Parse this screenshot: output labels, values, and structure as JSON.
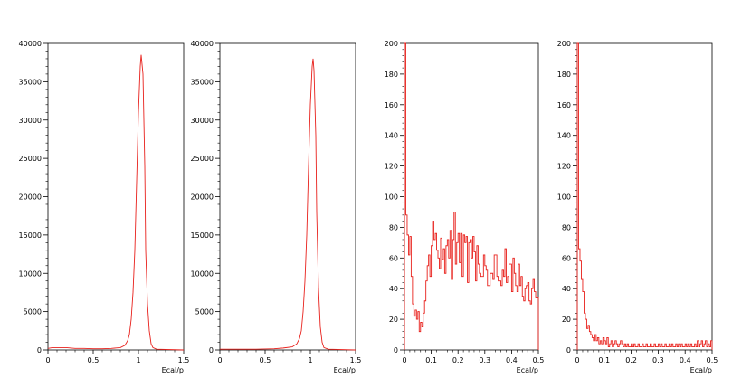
{
  "colors": {
    "histogram": "#e8201b",
    "frame": "#000000",
    "background": "#ffffff"
  },
  "chart_data": [
    {
      "type": "histogram",
      "xlabel": "Ecal/p",
      "ylabel": "",
      "xlim": [
        0,
        1.5
      ],
      "ylim": [
        0,
        40000
      ],
      "xticks": [
        "0",
        "0.5",
        "1",
        "1.5"
      ],
      "xtick_values": [
        0,
        0.5,
        1,
        1.5
      ],
      "yticks": [
        "0",
        "5000",
        "10000",
        "15000",
        "20000",
        "25000",
        "30000",
        "35000",
        "40000"
      ],
      "ytick_values": [
        0,
        5000,
        10000,
        15000,
        20000,
        25000,
        30000,
        35000,
        40000
      ],
      "x": [
        0,
        0.05,
        0.1,
        0.2,
        0.3,
        0.4,
        0.5,
        0.6,
        0.7,
        0.8,
        0.85,
        0.88,
        0.9,
        0.92,
        0.94,
        0.96,
        0.98,
        1.0,
        1.02,
        1.03,
        1.05,
        1.07,
        1.08,
        1.1,
        1.12,
        1.14,
        1.16,
        1.2,
        1.5
      ],
      "y": [
        200,
        300,
        300,
        300,
        200,
        200,
        150,
        150,
        200,
        300,
        600,
        1200,
        2000,
        4000,
        7500,
        13000,
        22000,
        31000,
        37000,
        38500,
        36000,
        24000,
        13000,
        6000,
        2500,
        800,
        300,
        100,
        0
      ]
    },
    {
      "type": "histogram",
      "xlabel": "Ecal/p",
      "ylabel": "",
      "xlim": [
        0,
        1.5
      ],
      "ylim": [
        0,
        40000
      ],
      "xticks": [
        "0",
        "0.5",
        "1",
        "1.5"
      ],
      "xtick_values": [
        0,
        0.5,
        1,
        1.5
      ],
      "yticks": [
        "0",
        "5000",
        "10000",
        "15000",
        "20000",
        "25000",
        "30000",
        "35000",
        "40000"
      ],
      "ytick_values": [
        0,
        5000,
        10000,
        15000,
        20000,
        25000,
        30000,
        35000,
        40000
      ],
      "x": [
        0,
        0.2,
        0.4,
        0.6,
        0.7,
        0.8,
        0.85,
        0.88,
        0.9,
        0.92,
        0.94,
        0.96,
        0.98,
        1.0,
        1.02,
        1.03,
        1.04,
        1.06,
        1.07,
        1.09,
        1.11,
        1.13,
        1.15,
        1.2,
        1.5
      ],
      "y": [
        100,
        100,
        100,
        150,
        250,
        400,
        800,
        1500,
        2500,
        5000,
        9000,
        15000,
        24000,
        32000,
        37000,
        38000,
        36500,
        28000,
        18000,
        8000,
        3000,
        1000,
        300,
        100,
        0
      ]
    },
    {
      "type": "histogram",
      "xlabel": "Ecal/p",
      "ylabel": "",
      "xlim": [
        0,
        0.5
      ],
      "ylim": [
        0,
        200
      ],
      "xticks": [
        "0",
        "0.1",
        "0.2",
        "0.3",
        "0.4",
        "0.5"
      ],
      "xtick_values": [
        0,
        0.1,
        0.2,
        0.3,
        0.4,
        0.5
      ],
      "yticks": [
        "0",
        "20",
        "40",
        "60",
        "80",
        "100",
        "120",
        "140",
        "160",
        "180",
        "200"
      ],
      "ytick_values": [
        0,
        20,
        40,
        60,
        80,
        100,
        120,
        140,
        160,
        180,
        200
      ],
      "bin_width": 0.005,
      "y_first_bin_overflow": 200,
      "y": [
        200,
        88,
        75,
        62,
        74,
        48,
        30,
        22,
        26,
        20,
        25,
        12,
        18,
        15,
        24,
        32,
        45,
        55,
        62,
        48,
        68,
        84,
        72,
        76,
        65,
        60,
        53,
        73,
        59,
        66,
        50,
        68,
        72,
        60,
        78,
        46,
        72,
        90,
        56,
        70,
        76,
        57,
        76,
        48,
        75,
        70,
        74,
        44,
        70,
        72,
        60,
        74,
        64,
        45,
        68,
        56,
        50,
        48,
        48,
        62,
        55,
        52,
        42,
        42,
        50,
        50,
        46,
        62,
        62,
        48,
        45,
        45,
        42,
        52,
        48,
        66,
        44,
        48,
        56,
        56,
        38,
        60,
        50,
        42,
        38,
        56,
        42,
        48,
        35,
        32,
        40,
        42,
        44,
        32,
        30,
        40,
        46,
        38,
        34,
        34
      ]
    },
    {
      "type": "histogram",
      "xlabel": "Ecal/p",
      "ylabel": "",
      "xlim": [
        0,
        0.5
      ],
      "ylim": [
        0,
        200
      ],
      "xticks": [
        "0",
        "0.1",
        "0.2",
        "0.3",
        "0.4",
        "0.5"
      ],
      "xtick_values": [
        0,
        0.1,
        0.2,
        0.3,
        0.4,
        0.5
      ],
      "yticks": [
        "0",
        "20",
        "40",
        "60",
        "80",
        "100",
        "120",
        "140",
        "160",
        "180",
        "200"
      ],
      "ytick_values": [
        0,
        20,
        40,
        60,
        80,
        100,
        120,
        140,
        160,
        180,
        200
      ],
      "bin_width": 0.005,
      "y_first_bin_overflow": 200,
      "y": [
        200,
        66,
        58,
        46,
        38,
        24,
        20,
        14,
        16,
        12,
        10,
        8,
        6,
        10,
        6,
        8,
        4,
        6,
        4,
        8,
        6,
        4,
        8,
        2,
        4,
        6,
        2,
        4,
        6,
        4,
        2,
        4,
        6,
        4,
        2,
        4,
        2,
        4,
        2,
        2,
        4,
        2,
        4,
        2,
        2,
        4,
        2,
        2,
        4,
        2,
        2,
        4,
        2,
        2,
        4,
        2,
        2,
        4,
        2,
        2,
        4,
        2,
        4,
        2,
        2,
        4,
        2,
        2,
        4,
        2,
        4,
        2,
        2,
        4,
        2,
        4,
        2,
        4,
        2,
        2,
        4,
        2,
        4,
        2,
        4,
        2,
        2,
        4,
        2,
        6,
        2,
        4,
        6,
        2,
        4,
        6,
        2,
        4,
        2,
        6
      ]
    }
  ]
}
